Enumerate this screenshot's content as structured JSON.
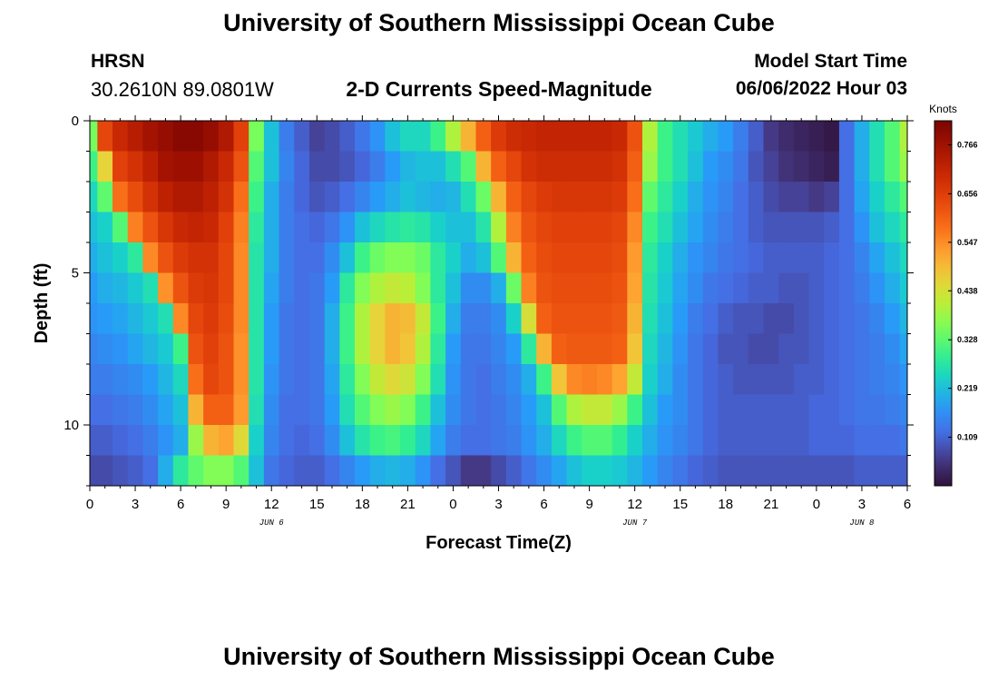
{
  "header": {
    "title": "University of Southern Mississippi Ocean Cube",
    "station_name": "HRSN",
    "station_coords": "30.2610N  89.0801W",
    "subtitle": "2-D Currents Speed-Magnitude",
    "model_start_label": "Model Start Time",
    "model_start_value": "06/06/2022 Hour 03"
  },
  "footer": {
    "title": "University of Southern Mississippi Ocean Cube"
  },
  "chart_data": {
    "type": "heatmap",
    "title": "2-D Currents Speed-Magnitude",
    "xlabel": "Forecast Time(Z)",
    "ylabel": "Depth (ft)",
    "x_range_hours": [
      0,
      54
    ],
    "x_tick_labels": [
      "0",
      "3",
      "6",
      "9",
      "12",
      "15",
      "18",
      "21",
      "0",
      "3",
      "6",
      "9",
      "12",
      "15",
      "18",
      "21",
      "0",
      "3",
      "6"
    ],
    "date_labels": [
      {
        "text": "JUN 6",
        "hour": 12
      },
      {
        "text": "JUN 7",
        "hour": 36
      },
      {
        "text": "JUN 8",
        "hour": 51
      }
    ],
    "y_range_ft": [
      0,
      12
    ],
    "y_tick_labels": [
      "0",
      "5",
      "10"
    ],
    "colorbar": {
      "units": "Knots",
      "min": 0.0,
      "max": 0.82,
      "labels": [
        "0.766",
        "0.656",
        "0.547",
        "0.438",
        "0.328",
        "0.219",
        "0.109"
      ]
    },
    "depth_levels_ft": [
      0.5,
      1.5,
      2.5,
      3.5,
      4.5,
      5.5,
      6.5,
      7.5,
      8.5,
      9.5,
      10.5,
      11.5
    ],
    "forecast_hours": [
      0,
      1,
      2,
      3,
      4,
      5,
      6,
      7,
      8,
      9,
      10,
      11,
      12,
      13,
      14,
      15,
      16,
      17,
      18,
      19,
      20,
      21,
      22,
      23,
      24,
      25,
      26,
      27,
      28,
      29,
      30,
      31,
      32,
      33,
      34,
      35,
      36,
      37,
      38,
      39,
      40,
      41,
      42,
      43,
      44,
      45,
      46,
      47,
      48,
      49,
      50,
      51,
      52,
      53,
      54
    ],
    "speed_knots": [
      [
        0.35,
        0.64,
        0.7,
        0.73,
        0.76,
        0.78,
        0.8,
        0.8,
        0.78,
        0.74,
        0.65,
        0.35,
        0.22,
        0.14,
        0.1,
        0.07,
        0.08,
        0.1,
        0.13,
        0.17,
        0.22,
        0.25,
        0.25,
        0.3,
        0.4,
        0.5,
        0.6,
        0.66,
        0.69,
        0.7,
        0.71,
        0.71,
        0.71,
        0.71,
        0.71,
        0.7,
        0.62,
        0.4,
        0.3,
        0.26,
        0.23,
        0.2,
        0.18,
        0.14,
        0.1,
        0.06,
        0.04,
        0.03,
        0.02,
        0.01,
        0.12,
        0.2,
        0.26,
        0.32,
        0.4
      ],
      [
        0.3,
        0.46,
        0.65,
        0.68,
        0.72,
        0.76,
        0.77,
        0.77,
        0.74,
        0.7,
        0.62,
        0.32,
        0.22,
        0.15,
        0.11,
        0.08,
        0.08,
        0.09,
        0.11,
        0.14,
        0.18,
        0.21,
        0.22,
        0.22,
        0.26,
        0.32,
        0.5,
        0.6,
        0.64,
        0.68,
        0.69,
        0.69,
        0.69,
        0.69,
        0.69,
        0.68,
        0.6,
        0.38,
        0.3,
        0.26,
        0.22,
        0.18,
        0.16,
        0.13,
        0.09,
        0.07,
        0.05,
        0.04,
        0.03,
        0.02,
        0.12,
        0.2,
        0.26,
        0.32,
        0.38
      ],
      [
        0.25,
        0.33,
        0.58,
        0.63,
        0.68,
        0.72,
        0.74,
        0.74,
        0.72,
        0.68,
        0.58,
        0.3,
        0.2,
        0.14,
        0.11,
        0.09,
        0.1,
        0.12,
        0.15,
        0.18,
        0.2,
        0.22,
        0.21,
        0.2,
        0.21,
        0.26,
        0.34,
        0.5,
        0.6,
        0.64,
        0.66,
        0.67,
        0.67,
        0.67,
        0.67,
        0.66,
        0.58,
        0.33,
        0.28,
        0.24,
        0.2,
        0.17,
        0.15,
        0.12,
        0.1,
        0.08,
        0.07,
        0.07,
        0.06,
        0.07,
        0.12,
        0.19,
        0.24,
        0.28,
        0.32
      ],
      [
        0.22,
        0.24,
        0.32,
        0.56,
        0.62,
        0.67,
        0.7,
        0.71,
        0.7,
        0.65,
        0.56,
        0.28,
        0.2,
        0.14,
        0.12,
        0.11,
        0.13,
        0.17,
        0.22,
        0.25,
        0.27,
        0.28,
        0.27,
        0.24,
        0.22,
        0.22,
        0.27,
        0.4,
        0.56,
        0.62,
        0.64,
        0.65,
        0.65,
        0.65,
        0.65,
        0.64,
        0.55,
        0.3,
        0.26,
        0.22,
        0.19,
        0.16,
        0.14,
        0.12,
        0.1,
        0.09,
        0.09,
        0.09,
        0.09,
        0.1,
        0.12,
        0.17,
        0.22,
        0.25,
        0.28
      ],
      [
        0.2,
        0.22,
        0.24,
        0.28,
        0.55,
        0.62,
        0.66,
        0.68,
        0.68,
        0.64,
        0.55,
        0.27,
        0.2,
        0.14,
        0.12,
        0.12,
        0.16,
        0.22,
        0.3,
        0.34,
        0.36,
        0.36,
        0.34,
        0.28,
        0.24,
        0.2,
        0.22,
        0.32,
        0.5,
        0.6,
        0.63,
        0.64,
        0.64,
        0.64,
        0.64,
        0.63,
        0.53,
        0.28,
        0.24,
        0.2,
        0.17,
        0.15,
        0.13,
        0.12,
        0.11,
        0.1,
        0.1,
        0.1,
        0.1,
        0.11,
        0.12,
        0.15,
        0.19,
        0.22,
        0.25
      ],
      [
        0.18,
        0.2,
        0.21,
        0.23,
        0.26,
        0.54,
        0.62,
        0.66,
        0.67,
        0.64,
        0.55,
        0.27,
        0.19,
        0.14,
        0.12,
        0.13,
        0.18,
        0.28,
        0.36,
        0.4,
        0.42,
        0.41,
        0.36,
        0.28,
        0.22,
        0.16,
        0.16,
        0.2,
        0.34,
        0.56,
        0.62,
        0.63,
        0.63,
        0.63,
        0.63,
        0.62,
        0.52,
        0.27,
        0.23,
        0.19,
        0.16,
        0.13,
        0.12,
        0.11,
        0.1,
        0.1,
        0.09,
        0.09,
        0.1,
        0.11,
        0.12,
        0.14,
        0.17,
        0.2,
        0.23
      ],
      [
        0.17,
        0.18,
        0.19,
        0.21,
        0.23,
        0.26,
        0.55,
        0.64,
        0.66,
        0.63,
        0.55,
        0.27,
        0.18,
        0.13,
        0.12,
        0.13,
        0.2,
        0.3,
        0.4,
        0.46,
        0.5,
        0.49,
        0.42,
        0.3,
        0.2,
        0.14,
        0.14,
        0.16,
        0.24,
        0.44,
        0.6,
        0.62,
        0.62,
        0.62,
        0.62,
        0.61,
        0.5,
        0.26,
        0.22,
        0.18,
        0.14,
        0.12,
        0.1,
        0.09,
        0.09,
        0.08,
        0.08,
        0.09,
        0.1,
        0.11,
        0.12,
        0.13,
        0.15,
        0.18,
        0.21
      ],
      [
        0.15,
        0.16,
        0.17,
        0.19,
        0.21,
        0.23,
        0.3,
        0.62,
        0.65,
        0.62,
        0.54,
        0.27,
        0.18,
        0.13,
        0.12,
        0.13,
        0.2,
        0.3,
        0.4,
        0.46,
        0.5,
        0.48,
        0.4,
        0.28,
        0.18,
        0.13,
        0.13,
        0.15,
        0.18,
        0.28,
        0.5,
        0.6,
        0.61,
        0.61,
        0.61,
        0.6,
        0.48,
        0.25,
        0.21,
        0.17,
        0.13,
        0.11,
        0.09,
        0.09,
        0.08,
        0.08,
        0.09,
        0.09,
        0.1,
        0.11,
        0.12,
        0.13,
        0.14,
        0.16,
        0.19
      ],
      [
        0.14,
        0.14,
        0.15,
        0.16,
        0.18,
        0.21,
        0.25,
        0.58,
        0.64,
        0.62,
        0.54,
        0.27,
        0.17,
        0.13,
        0.12,
        0.13,
        0.19,
        0.28,
        0.36,
        0.42,
        0.45,
        0.43,
        0.36,
        0.26,
        0.17,
        0.13,
        0.12,
        0.14,
        0.16,
        0.2,
        0.3,
        0.48,
        0.55,
        0.56,
        0.55,
        0.52,
        0.42,
        0.24,
        0.2,
        0.16,
        0.13,
        0.11,
        0.1,
        0.09,
        0.09,
        0.09,
        0.09,
        0.1,
        0.1,
        0.11,
        0.12,
        0.13,
        0.14,
        0.15,
        0.17
      ],
      [
        0.12,
        0.12,
        0.13,
        0.14,
        0.16,
        0.19,
        0.22,
        0.5,
        0.6,
        0.6,
        0.53,
        0.26,
        0.16,
        0.12,
        0.12,
        0.13,
        0.18,
        0.26,
        0.32,
        0.36,
        0.38,
        0.36,
        0.3,
        0.22,
        0.16,
        0.13,
        0.12,
        0.13,
        0.15,
        0.18,
        0.22,
        0.32,
        0.4,
        0.42,
        0.42,
        0.38,
        0.3,
        0.22,
        0.18,
        0.16,
        0.13,
        0.11,
        0.1,
        0.1,
        0.1,
        0.1,
        0.1,
        0.1,
        0.11,
        0.11,
        0.12,
        0.13,
        0.13,
        0.14,
        0.15
      ],
      [
        0.1,
        0.1,
        0.11,
        0.12,
        0.14,
        0.17,
        0.2,
        0.38,
        0.5,
        0.52,
        0.45,
        0.24,
        0.15,
        0.12,
        0.11,
        0.12,
        0.16,
        0.22,
        0.27,
        0.3,
        0.31,
        0.29,
        0.25,
        0.19,
        0.14,
        0.12,
        0.12,
        0.13,
        0.14,
        0.17,
        0.2,
        0.25,
        0.3,
        0.32,
        0.32,
        0.29,
        0.24,
        0.2,
        0.17,
        0.15,
        0.13,
        0.11,
        0.1,
        0.1,
        0.1,
        0.1,
        0.1,
        0.1,
        0.11,
        0.11,
        0.11,
        0.12,
        0.12,
        0.12,
        0.13
      ],
      [
        0.08,
        0.08,
        0.09,
        0.1,
        0.12,
        0.2,
        0.28,
        0.33,
        0.36,
        0.36,
        0.32,
        0.22,
        0.13,
        0.11,
        0.1,
        0.1,
        0.12,
        0.15,
        0.18,
        0.2,
        0.21,
        0.2,
        0.17,
        0.12,
        0.09,
        0.06,
        0.06,
        0.08,
        0.1,
        0.13,
        0.16,
        0.19,
        0.22,
        0.24,
        0.24,
        0.23,
        0.21,
        0.18,
        0.15,
        0.13,
        0.11,
        0.1,
        0.09,
        0.09,
        0.09,
        0.09,
        0.09,
        0.09,
        0.09,
        0.09,
        0.09,
        0.1,
        0.1,
        0.1,
        0.1
      ]
    ]
  }
}
